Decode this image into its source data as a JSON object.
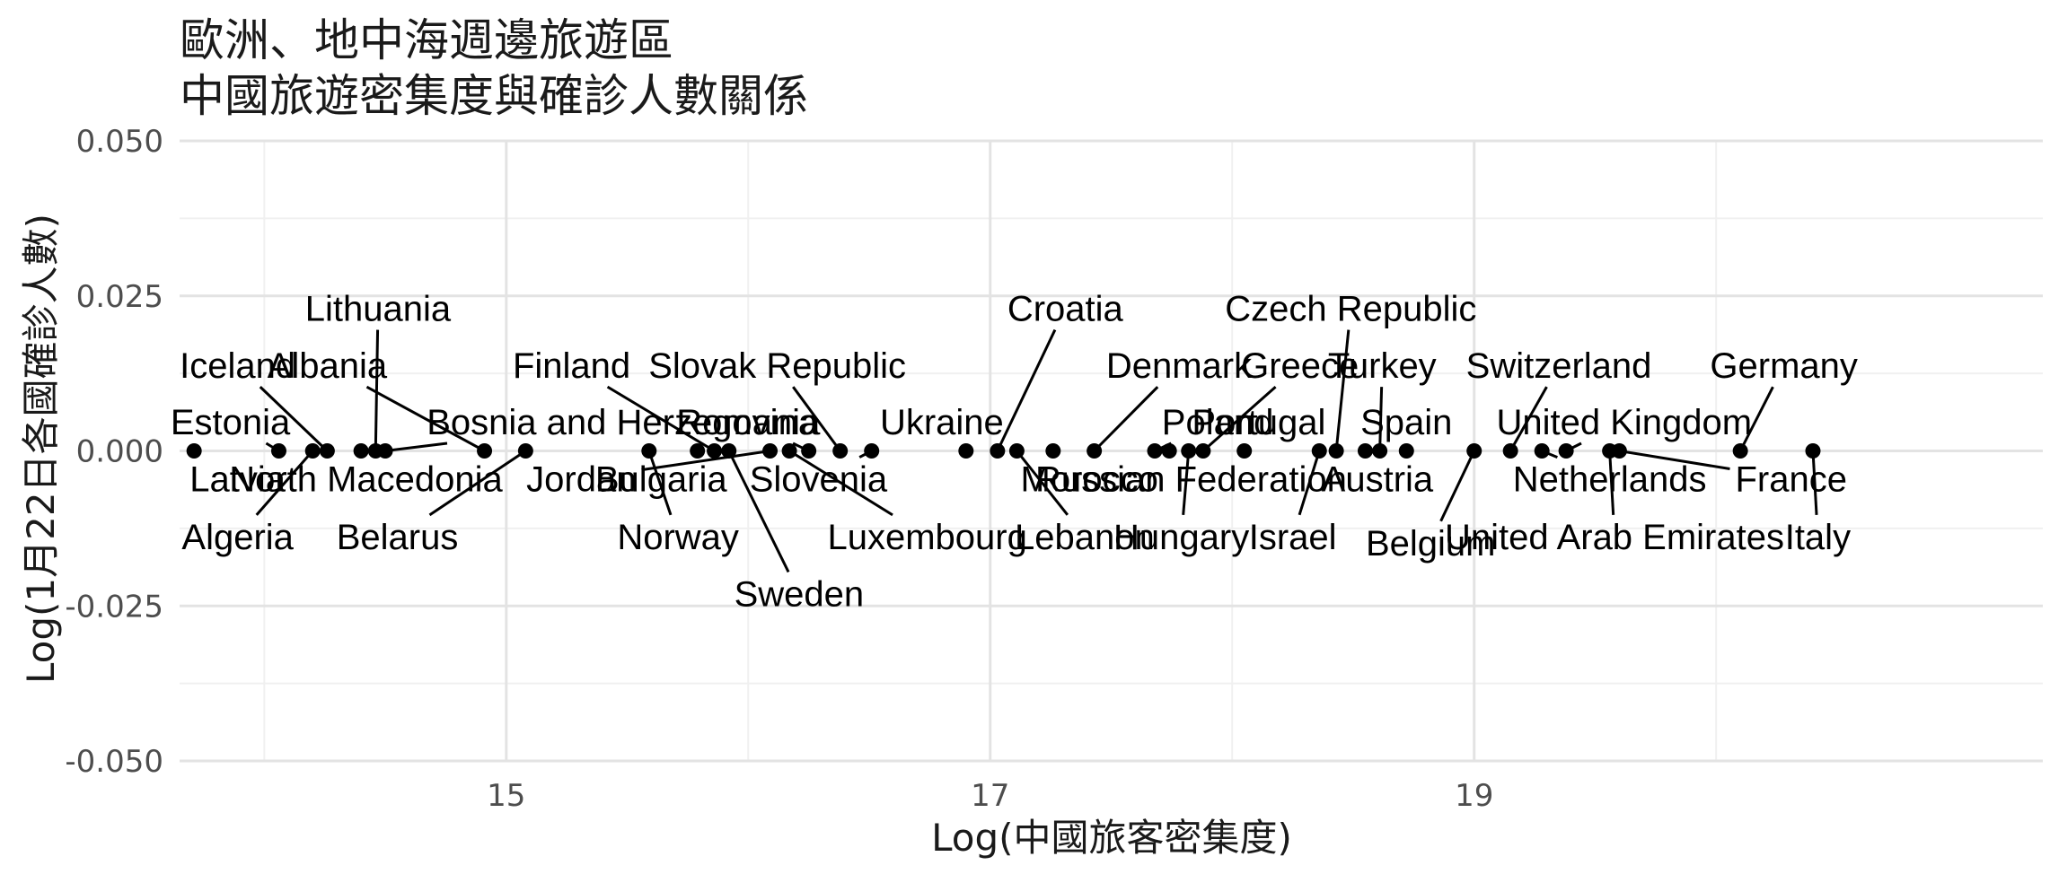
{
  "chart_data": {
    "type": "scatter",
    "title": [
      "歐洲、地中海週邊旅遊區",
      "中國旅遊密集度與確診人數關係"
    ],
    "xlabel": "Log(中國旅客密集度)",
    "ylabel": "Log(1月22日各國確診人數)",
    "xlim": [
      13.65,
      21.35
    ],
    "ylim": [
      -0.05,
      0.05
    ],
    "x_ticks": [
      15,
      17,
      19
    ],
    "x_tick_labels": [
      "15",
      "17",
      "19"
    ],
    "y_ticks": [
      -0.05,
      -0.025,
      0,
      0.025,
      0.05
    ],
    "y_tick_labels": [
      "-0.050",
      "-0.025",
      "0.000",
      "0.025",
      "0.050"
    ],
    "grid": true,
    "points": [
      {
        "name": "Latvia",
        "x": 13.71,
        "y": 0,
        "label_x": 13.89,
        "label_y": -0.0045
      },
      {
        "name": "Estonia",
        "x": 14.06,
        "y": 0,
        "label_x": 13.86,
        "label_y": 0.0047
      },
      {
        "name": "Algeria",
        "x": 14.2,
        "y": 0,
        "label_x": 13.89,
        "label_y": -0.0138
      },
      {
        "name": "Iceland",
        "x": 14.26,
        "y": 0,
        "label_x": 13.89,
        "label_y": 0.0138
      },
      {
        "name": "North Macedonia",
        "x": 14.4,
        "y": 0,
        "label_x": 14.42,
        "label_y": -0.0045
      },
      {
        "name": "Lithuania",
        "x": 14.46,
        "y": 0,
        "label_x": 14.47,
        "label_y": 0.023
      },
      {
        "name": "Bosnia and Herzegovina",
        "x": 14.5,
        "y": 0,
        "label_x": 15.48,
        "label_y": 0.0047
      },
      {
        "name": "Albania",
        "x": 14.91,
        "y": 0,
        "label_x": 14.26,
        "label_y": 0.0138
      },
      {
        "name": "Belarus",
        "x": 15.08,
        "y": 0,
        "label_x": 14.55,
        "label_y": -0.0138
      },
      {
        "name": "Norway",
        "x": 15.59,
        "y": 0,
        "label_x": 15.71,
        "label_y": -0.0138
      },
      {
        "name": "Bulgaria",
        "x": 15.79,
        "y": 0,
        "label_x": 15.64,
        "label_y": -0.0045
      },
      {
        "name": "Finland",
        "x": 15.86,
        "y": 0,
        "label_x": 15.27,
        "label_y": 0.0138
      },
      {
        "name": "Sweden",
        "x": 15.92,
        "y": 0,
        "label_x": 16.21,
        "label_y": -0.023
      },
      {
        "name": "Jordan",
        "x": 16.09,
        "y": 0,
        "label_x": 15.31,
        "label_y": -0.0045
      },
      {
        "name": "Luxembourg",
        "x": 16.17,
        "y": 0,
        "label_x": 16.74,
        "label_y": -0.0138
      },
      {
        "name": "Romania",
        "x": 16.25,
        "y": 0,
        "label_x": 16.0,
        "label_y": 0.0047
      },
      {
        "name": "Slovak Republic",
        "x": 16.38,
        "y": 0,
        "label_x": 16.12,
        "label_y": 0.0138
      },
      {
        "name": "Slovenia",
        "x": 16.51,
        "y": 0,
        "label_x": 16.29,
        "label_y": -0.0045
      },
      {
        "name": "Ukraine",
        "x": 16.9,
        "y": 0,
        "label_x": 16.8,
        "label_y": 0.0047
      },
      {
        "name": "Croatia",
        "x": 17.03,
        "y": 0,
        "label_x": 17.31,
        "label_y": 0.023
      },
      {
        "name": "Lebanon",
        "x": 17.11,
        "y": 0,
        "label_x": 17.39,
        "label_y": -0.0138
      },
      {
        "name": "Morocco",
        "x": 17.26,
        "y": 0,
        "label_x": 17.41,
        "label_y": -0.0045
      },
      {
        "name": "Denmark",
        "x": 17.43,
        "y": 0,
        "label_x": 17.78,
        "label_y": 0.0138
      },
      {
        "name": "Poland",
        "x": 17.68,
        "y": 0,
        "label_x": 17.94,
        "label_y": 0.0047
      },
      {
        "name": "Russian Federation",
        "x": 17.74,
        "y": 0,
        "label_x": 17.83,
        "label_y": -0.0045
      },
      {
        "name": "Hungary",
        "x": 17.82,
        "y": 0,
        "label_x": 17.79,
        "label_y": -0.0138
      },
      {
        "name": "Greece",
        "x": 17.88,
        "y": 0,
        "label_x": 18.28,
        "label_y": 0.0138
      },
      {
        "name": "Portugal",
        "x": 18.05,
        "y": 0,
        "label_x": 18.11,
        "label_y": 0.0047
      },
      {
        "name": "Israel",
        "x": 18.36,
        "y": 0,
        "label_x": 18.25,
        "label_y": -0.0138
      },
      {
        "name": "Czech Republic",
        "x": 18.43,
        "y": 0,
        "label_x": 18.49,
        "label_y": 0.023
      },
      {
        "name": "Austria",
        "x": 18.55,
        "y": 0,
        "label_x": 18.6,
        "label_y": -0.0045
      },
      {
        "name": "Turkey",
        "x": 18.61,
        "y": 0,
        "label_x": 18.62,
        "label_y": 0.0138
      },
      {
        "name": "Spain",
        "x": 18.72,
        "y": 0,
        "label_x": 18.72,
        "label_y": 0.0047
      },
      {
        "name": "Belgium",
        "x": 19.0,
        "y": 0,
        "label_x": 18.82,
        "label_y": -0.0148
      },
      {
        "name": "Switzerland",
        "x": 19.15,
        "y": 0,
        "label_x": 19.35,
        "label_y": 0.0138
      },
      {
        "name": "Netherlands",
        "x": 19.28,
        "y": 0,
        "label_x": 19.56,
        "label_y": -0.0045
      },
      {
        "name": "United Kingdom",
        "x": 19.38,
        "y": 0,
        "label_x": 19.62,
        "label_y": 0.0047
      },
      {
        "name": "United Arab Emirates",
        "x": 19.56,
        "y": 0,
        "label_x": 19.58,
        "label_y": -0.0138
      },
      {
        "name": "France",
        "x": 19.6,
        "y": 0,
        "label_x": 20.31,
        "label_y": -0.0045
      },
      {
        "name": "Germany",
        "x": 20.1,
        "y": 0,
        "label_x": 20.28,
        "label_y": 0.0138
      },
      {
        "name": "Italy",
        "x": 20.4,
        "y": 0,
        "label_x": 20.42,
        "label_y": -0.0138
      }
    ]
  }
}
